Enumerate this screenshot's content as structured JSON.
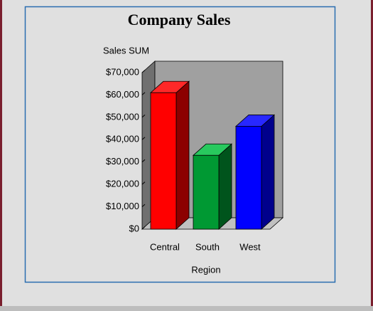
{
  "chart_data": {
    "type": "bar3d",
    "title": "Company Sales",
    "y_label": "Sales SUM",
    "x_label": "Region",
    "categories": [
      "Central",
      "South",
      "West"
    ],
    "values": [
      61000,
      33000,
      46000
    ],
    "colors": [
      "#ff0000",
      "#009933",
      "#0000ff"
    ],
    "ylim": [
      0,
      70000
    ],
    "yticks": [
      {
        "value": 0,
        "label": "$0"
      },
      {
        "value": 10000,
        "label": "$10,000"
      },
      {
        "value": 20000,
        "label": "$20,000"
      },
      {
        "value": 30000,
        "label": "$30,000"
      },
      {
        "value": 40000,
        "label": "$40,000"
      },
      {
        "value": 50000,
        "label": "$50,000"
      },
      {
        "value": 60000,
        "label": "$60,000"
      },
      {
        "value": 70000,
        "label": "$70,000"
      }
    ]
  }
}
